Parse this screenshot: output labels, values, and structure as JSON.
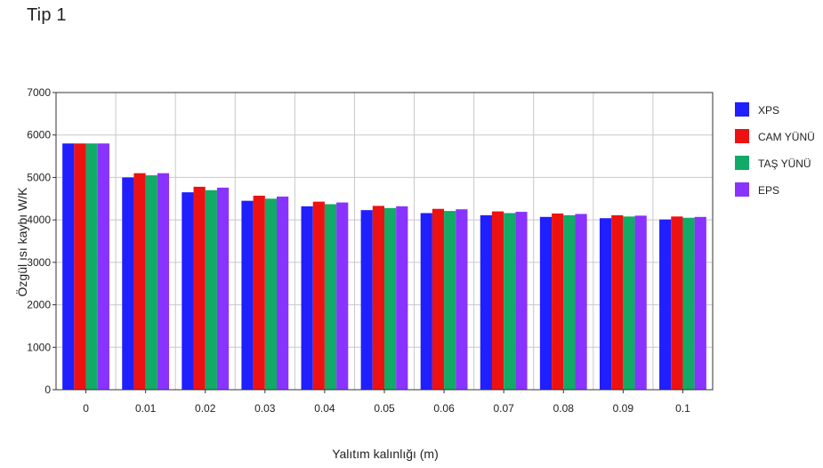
{
  "chart_data": {
    "type": "bar",
    "title": "Tip 1",
    "xlabel": "Yalıtım kalınlığı (m)",
    "ylabel": "Özgül ısı kaybı W/K",
    "ylim": [
      0,
      7000
    ],
    "yticks": [
      0,
      1000,
      2000,
      3000,
      4000,
      5000,
      6000,
      7000
    ],
    "categories": [
      "0",
      "0.01",
      "0.02",
      "0.03",
      "0.04",
      "0.05",
      "0.06",
      "0.07",
      "0.08",
      "0.09",
      "0.1"
    ],
    "grid": true,
    "legend_position": "right",
    "series": [
      {
        "name": "XPS",
        "color": "#1f1fff",
        "values": [
          5800,
          5000,
          4650,
          4450,
          4320,
          4230,
          4160,
          4110,
          4070,
          4040,
          4010
        ]
      },
      {
        "name": "CAM YÜNÜ",
        "color": "#ee1111",
        "values": [
          5800,
          5100,
          4780,
          4570,
          4430,
          4330,
          4260,
          4200,
          4150,
          4110,
          4080
        ]
      },
      {
        "name": "TAŞ YÜNÜ",
        "color": "#11aa66",
        "values": [
          5800,
          5050,
          4700,
          4500,
          4370,
          4280,
          4210,
          4160,
          4110,
          4080,
          4050
        ]
      },
      {
        "name": "EPS",
        "color": "#8833ff",
        "values": [
          5800,
          5100,
          4760,
          4550,
          4410,
          4320,
          4250,
          4190,
          4140,
          4100,
          4070
        ]
      }
    ]
  }
}
